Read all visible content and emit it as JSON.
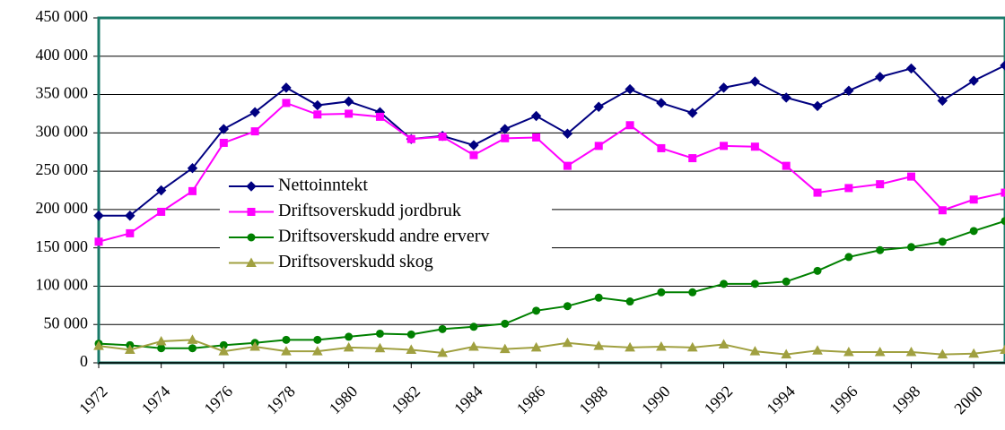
{
  "chart_data": {
    "type": "line",
    "x": [
      1972,
      1973,
      1974,
      1975,
      1976,
      1977,
      1978,
      1979,
      1980,
      1981,
      1982,
      1983,
      1984,
      1985,
      1986,
      1987,
      1988,
      1989,
      1990,
      1991,
      1992,
      1993,
      1994,
      1995,
      1996,
      1997,
      1998,
      1999,
      2000,
      2001
    ],
    "xlim": [
      1972,
      2001
    ],
    "xticks": [
      1972,
      1974,
      1976,
      1978,
      1980,
      1982,
      1984,
      1986,
      1988,
      1990,
      1992,
      1994,
      1996,
      1998,
      2000
    ],
    "ylim": [
      0,
      450000
    ],
    "yticks": [
      0,
      {
        "value": 50000,
        "label": "50 000"
      },
      {
        "value": 100000,
        "label": "100 000"
      },
      {
        "value": 150000,
        "label": "150 000"
      },
      {
        "value": 200000,
        "label": "200 000"
      },
      {
        "value": 250000,
        "label": "250 000"
      },
      {
        "value": 300000,
        "label": "300 000"
      },
      {
        "value": 350000,
        "label": "350 000"
      },
      {
        "value": 400000,
        "label": "400 000"
      },
      {
        "value": 450000,
        "label": "450 000"
      }
    ],
    "grid": true,
    "series": [
      {
        "name": "Nettoinntekt",
        "color": "#000080",
        "marker": "diamond",
        "values": [
          192000,
          192000,
          225000,
          254000,
          305000,
          327000,
          359000,
          336000,
          341000,
          327000,
          292000,
          296000,
          284000,
          305000,
          322000,
          299000,
          334000,
          357000,
          339000,
          326000,
          359000,
          367000,
          346000,
          335000,
          355000,
          373000,
          384000,
          342000,
          368000,
          388000
        ]
      },
      {
        "name": "Driftsoverskudd jordbruk",
        "color": "#ff00ff",
        "marker": "square",
        "values": [
          158000,
          169000,
          197000,
          224000,
          287000,
          302000,
          339000,
          324000,
          325000,
          321000,
          292000,
          295000,
          271000,
          293000,
          294000,
          257000,
          283000,
          310000,
          280000,
          267000,
          283000,
          282000,
          257000,
          222000,
          228000,
          233000,
          243000,
          199000,
          213000,
          222000
        ]
      },
      {
        "name": "Driftsoverskudd andre erverv",
        "color": "#008000",
        "marker": "circle",
        "values": [
          25000,
          23000,
          19000,
          19000,
          23000,
          26000,
          30000,
          30000,
          34000,
          38000,
          37000,
          44000,
          47000,
          51000,
          68000,
          74000,
          85000,
          80000,
          92000,
          92000,
          103000,
          103000,
          106000,
          120000,
          138000,
          147000,
          151000,
          158000,
          172000,
          185000
        ]
      },
      {
        "name": "Driftsoverskudd skog",
        "color": "#a0a040",
        "marker": "triangle",
        "values": [
          22000,
          17000,
          28000,
          30000,
          15000,
          21000,
          15000,
          15000,
          20000,
          19000,
          17000,
          13000,
          21000,
          18000,
          20000,
          26000,
          22000,
          20000,
          21000,
          20000,
          24000,
          15000,
          11000,
          16000,
          14000,
          14000,
          14000,
          11000,
          12000,
          17000
        ]
      }
    ]
  }
}
